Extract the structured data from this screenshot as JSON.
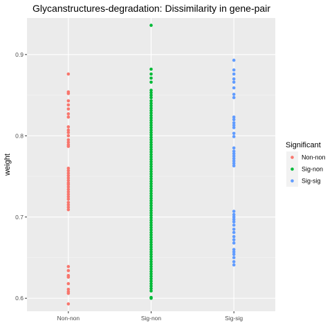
{
  "chart_data": {
    "type": "scatter",
    "title": "Glycanstructures-degradation: Dissimilarity in gene-pair",
    "xlabel": "",
    "ylabel": "weight",
    "categories": [
      "Non-non",
      "Sig-non",
      "Sig-sig"
    ],
    "ylim": [
      0.584,
      0.945
    ],
    "yticks": [
      0.6,
      0.7,
      0.8,
      0.9
    ],
    "ytick_labels": [
      "0.6",
      "0.7",
      "0.8",
      "0.9"
    ],
    "grid": true,
    "legend": {
      "title": "Significant",
      "position": "right"
    },
    "series": [
      {
        "name": "Non-non",
        "color": "#F8766D",
        "x": "Non-non",
        "values": [
          0.876,
          0.854,
          0.852,
          0.843,
          0.838,
          0.833,
          0.827,
          0.823,
          0.811,
          0.807,
          0.804,
          0.8,
          0.795,
          0.792,
          0.789,
          0.787,
          0.76,
          0.757,
          0.754,
          0.751,
          0.748,
          0.745,
          0.742,
          0.74,
          0.737,
          0.734,
          0.731,
          0.728,
          0.725,
          0.722,
          0.718,
          0.715,
          0.712,
          0.709,
          0.639,
          0.634,
          0.628,
          0.626,
          0.618,
          0.611,
          0.608,
          0.606,
          0.593
        ]
      },
      {
        "name": "Sig-non",
        "color": "#00BA38",
        "x": "Sig-non",
        "values": [
          0.936,
          0.882,
          0.876,
          0.871,
          0.866,
          0.856,
          0.853,
          0.85,
          0.847,
          0.843,
          0.84,
          0.837,
          0.834,
          0.831,
          0.828,
          0.825,
          0.822,
          0.819,
          0.816,
          0.813,
          0.81,
          0.807,
          0.804,
          0.801,
          0.798,
          0.795,
          0.792,
          0.789,
          0.786,
          0.783,
          0.78,
          0.777,
          0.774,
          0.771,
          0.768,
          0.765,
          0.762,
          0.759,
          0.756,
          0.753,
          0.75,
          0.747,
          0.744,
          0.741,
          0.738,
          0.735,
          0.732,
          0.729,
          0.726,
          0.723,
          0.72,
          0.717,
          0.714,
          0.711,
          0.708,
          0.705,
          0.702,
          0.699,
          0.696,
          0.693,
          0.69,
          0.687,
          0.684,
          0.681,
          0.678,
          0.675,
          0.672,
          0.669,
          0.666,
          0.663,
          0.66,
          0.657,
          0.654,
          0.651,
          0.648,
          0.645,
          0.642,
          0.639,
          0.636,
          0.633,
          0.63,
          0.627,
          0.624,
          0.621,
          0.618,
          0.615,
          0.612,
          0.609,
          0.601,
          0.6
        ]
      },
      {
        "name": "Sig-sig",
        "color": "#619CFF",
        "x": "Sig-sig",
        "values": [
          0.893,
          0.881,
          0.876,
          0.87,
          0.866,
          0.859,
          0.851,
          0.847,
          0.823,
          0.82,
          0.816,
          0.813,
          0.81,
          0.803,
          0.799,
          0.785,
          0.781,
          0.778,
          0.775,
          0.772,
          0.769,
          0.766,
          0.763,
          0.707,
          0.703,
          0.7,
          0.697,
          0.694,
          0.69,
          0.685,
          0.681,
          0.676,
          0.672,
          0.668,
          0.66,
          0.657,
          0.654,
          0.65,
          0.645,
          0.641
        ]
      }
    ]
  }
}
